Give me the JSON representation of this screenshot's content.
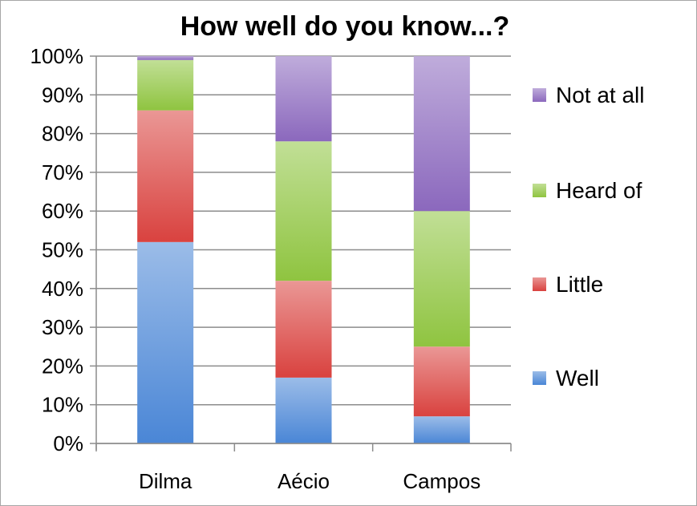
{
  "chart_data": {
    "type": "bar",
    "stacked": true,
    "percent_stacked": true,
    "title": "How well do you know...?",
    "categories": [
      "Dilma",
      "Aécio",
      "Campos"
    ],
    "series": [
      {
        "name": "Well",
        "values": [
          52,
          17,
          7
        ],
        "color": "#4a86d6"
      },
      {
        "name": "Little",
        "values": [
          34,
          25,
          18
        ],
        "color": "#d9423f"
      },
      {
        "name": "Heard of",
        "values": [
          13,
          36,
          35
        ],
        "color": "#8fc440"
      },
      {
        "name": "Not at all",
        "values": [
          1,
          22,
          40
        ],
        "color": "#8b68bd"
      }
    ],
    "ylim": [
      0,
      100
    ],
    "yticks": [
      "0%",
      "10%",
      "20%",
      "30%",
      "40%",
      "50%",
      "60%",
      "70%",
      "80%",
      "90%",
      "100%"
    ],
    "grid": true,
    "legend_position": "right",
    "legend_order": [
      "Not at all",
      "Heard of",
      "Little",
      "Well"
    ]
  }
}
